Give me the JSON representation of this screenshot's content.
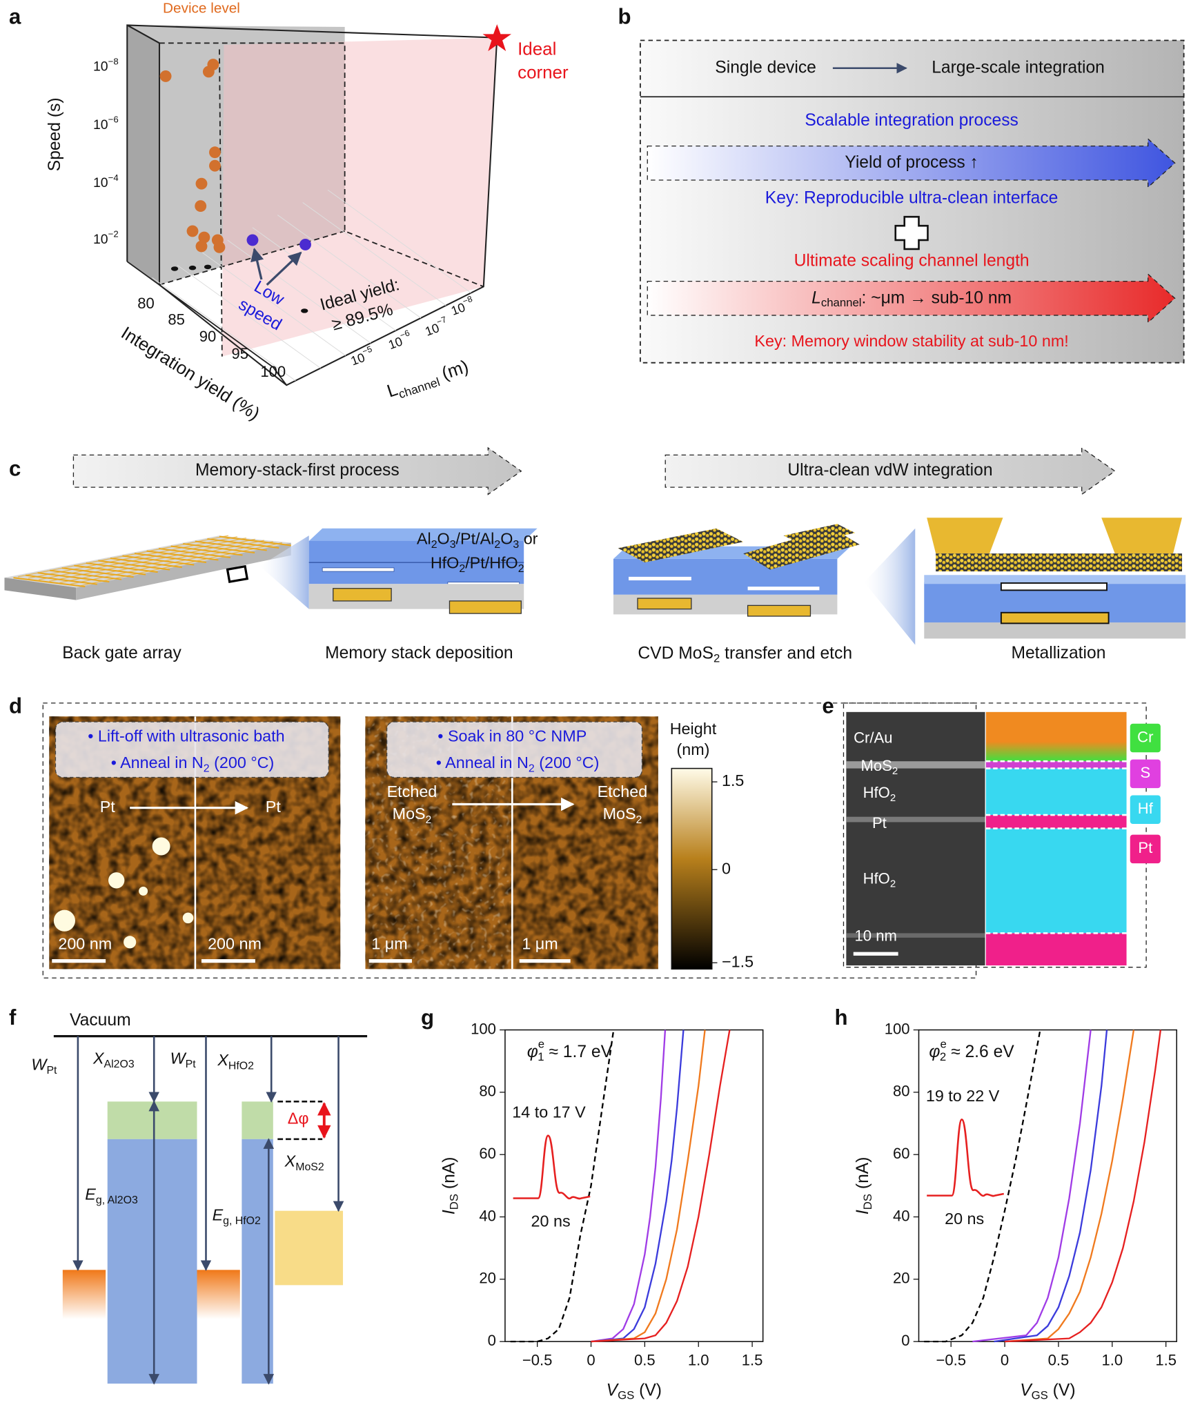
{
  "panel_labels": [
    "a",
    "b",
    "c",
    "d",
    "e",
    "f",
    "g",
    "h"
  ],
  "panel_a": {
    "device_level": "Device level",
    "ideal_corner": [
      "Ideal",
      "corner"
    ],
    "y_label": "Speed (s)",
    "y_ticks": [
      [
        "10",
        "−8"
      ],
      [
        "10",
        "−6"
      ],
      [
        "10",
        "−4"
      ],
      [
        "10",
        "−2"
      ]
    ],
    "yield_label": "Integration yield (%)",
    "yield_ticks": [
      "80",
      "85",
      "90",
      "95",
      "100"
    ],
    "l_ticks": [
      [
        "10",
        "−5"
      ],
      [
        "10",
        "−6"
      ],
      [
        "10",
        "−7"
      ],
      [
        "10",
        "−8"
      ]
    ],
    "l_label": [
      "L",
      "channel",
      " (m)"
    ],
    "low_speed": [
      "Low",
      "speed"
    ],
    "ideal_yield": [
      "Ideal yield:",
      "≥ 89.5%"
    ]
  },
  "panel_b": {
    "header_left": "Single device",
    "header_right": "Large-scale integration",
    "process": "Scalable integration process",
    "yield_arrow": "Yield of process ↑",
    "key1": "Key: Reproducible ultra-clean interface",
    "scaling": "Ultimate scaling channel length",
    "channel_arrow": [
      "L",
      "channel",
      ": ~μm → sub-10 nm"
    ],
    "key2": "Key: Memory window stability at sub-10 nm!"
  },
  "panel_c": {
    "arrow_left": "Memory-stack-first process",
    "arrow_right": "Ultra-clean vdW integration",
    "stack_line1": [
      "Al",
      "2",
      "O",
      "3",
      "/Pt/Al",
      "2",
      "O",
      "3",
      " or"
    ],
    "stack_line2": [
      "HfO",
      "2",
      "/Pt/HfO",
      "2"
    ],
    "captions": [
      "Back gate array",
      "Memory stack deposition",
      [
        "CVD MoS",
        "2",
        " transfer and etch"
      ],
      "Metallization"
    ]
  },
  "panel_d": {
    "left_notes": [
      "• Lift-off with ultrasonic bath",
      [
        "• Anneal in N",
        "2",
        " (200 °C)"
      ]
    ],
    "right_notes": [
      "• Soak in 80 °C NMP",
      [
        "• Anneal in N",
        "2",
        " (200 °C)"
      ]
    ],
    "left_labels": [
      "Pt",
      "Pt"
    ],
    "left_scales": [
      "200 nm",
      "200 nm"
    ],
    "right_labels": [
      [
        "Etched",
        "MoS",
        "2"
      ],
      [
        "Etched",
        "MoS",
        "2"
      ]
    ],
    "right_scales": [
      "1 μm",
      "1 μm"
    ],
    "colorbar_title": [
      "Height",
      "(nm)"
    ],
    "colorbar_ticks": [
      "1.5",
      "0",
      "−1.5"
    ]
  },
  "panel_e": {
    "layers": [
      "Cr/Au",
      [
        "MoS",
        "2"
      ],
      [
        "HfO",
        "2"
      ],
      "Pt",
      [
        "HfO",
        "2"
      ]
    ],
    "scale": "10 nm",
    "elements": [
      "Cr",
      "S",
      "Hf",
      "Pt"
    ]
  },
  "panel_f": {
    "vacuum": "Vacuum",
    "w_pt_left": [
      "W",
      "Pt"
    ],
    "x_al2o3": [
      "X",
      "Al",
      "2",
      "O",
      "3"
    ],
    "w_pt_mid": [
      "W",
      "Pt"
    ],
    "x_hfo2": [
      "X",
      "HfO",
      "2"
    ],
    "delta_phi": "Δφ",
    "x_mos2": [
      "X",
      "MoS",
      "2"
    ],
    "eg_al2o3": [
      "E",
      "g, Al",
      "2",
      "O",
      "3"
    ],
    "eg_hfo2": [
      "E",
      "g, HfO",
      "2"
    ]
  },
  "chart_data": [
    {
      "type": "line",
      "y_label": [
        "I",
        "DS",
        " (nA)"
      ],
      "x_label": [
        "V",
        "GS",
        " (V)"
      ],
      "energy_label": [
        "φ",
        "e",
        "1",
        " ≈ 1.7 eV"
      ],
      "annotations": [
        "14 to 17 V",
        "20 ns"
      ],
      "xlim": [
        -0.8,
        1.6
      ],
      "ylim": [
        0,
        100
      ],
      "xticks": [
        {
          "value": -0.5,
          "label": "−0.5"
        },
        0,
        0.5,
        {
          "value": 1,
          "label": "1.0"
        },
        1.5
      ],
      "yticks": [
        0,
        20,
        40,
        60,
        80,
        100
      ],
      "series": [
        {
          "color": "#000000",
          "style": "dashed",
          "x": [
            -0.75,
            -0.5,
            -0.4,
            -0.3,
            -0.2,
            -0.1,
            0,
            0.1,
            0.21
          ],
          "values": [
            0,
            0,
            1,
            4,
            14,
            34,
            50,
            74,
            100
          ]
        },
        {
          "color": "#a03ce6",
          "style": "solid",
          "x": [
            0,
            0.2,
            0.3,
            0.4,
            0.5,
            0.55,
            0.6,
            0.65,
            0.69
          ],
          "values": [
            0,
            1,
            4,
            12,
            28,
            40,
            56,
            78,
            100
          ]
        },
        {
          "color": "#3c3cdc",
          "style": "solid",
          "x": [
            0,
            0.3,
            0.4,
            0.5,
            0.6,
            0.7,
            0.75,
            0.8,
            0.86
          ],
          "values": [
            0,
            1,
            4,
            11,
            25,
            45,
            58,
            75,
            100
          ]
        },
        {
          "color": "#f07a1e",
          "style": "solid",
          "x": [
            0,
            0.4,
            0.5,
            0.6,
            0.7,
            0.8,
            0.9,
            1,
            1.06
          ],
          "values": [
            0,
            1,
            3,
            9,
            20,
            36,
            58,
            82,
            100
          ]
        },
        {
          "color": "#e62020",
          "style": "solid",
          "x": [
            0,
            0.5,
            0.6,
            0.7,
            0.8,
            0.9,
            1,
            1.1,
            1.2,
            1.29
          ],
          "values": [
            0,
            1,
            2,
            6,
            13,
            24,
            40,
            60,
            82,
            100
          ]
        }
      ]
    },
    {
      "type": "line",
      "y_label": [
        "I",
        "DS",
        " (nA)"
      ],
      "x_label": [
        "V",
        "GS",
        " (V)"
      ],
      "energy_label": [
        "φ",
        "e",
        "2",
        " ≈ 2.6 eV"
      ],
      "annotations": [
        "19 to 22 V",
        "20 ns"
      ],
      "xlim": [
        -0.8,
        1.6
      ],
      "ylim": [
        0,
        100
      ],
      "xticks": [
        {
          "value": -0.5,
          "label": "−0.5"
        },
        0,
        0.5,
        {
          "value": 1,
          "label": "1.0"
        },
        1.5
      ],
      "yticks": [
        0,
        20,
        40,
        60,
        80,
        100
      ],
      "series": [
        {
          "color": "#000000",
          "style": "dashed",
          "x": [
            -0.75,
            -0.55,
            -0.4,
            -0.3,
            -0.2,
            -0.1,
            0,
            0.1,
            0.2,
            0.33
          ],
          "values": [
            0,
            0,
            2,
            6,
            14,
            27,
            42,
            58,
            76,
            100
          ]
        },
        {
          "color": "#a03ce6",
          "style": "solid",
          "x": [
            -0.3,
            0.2,
            0.3,
            0.4,
            0.5,
            0.6,
            0.7,
            0.8
          ],
          "values": [
            0,
            2,
            6,
            14,
            27,
            46,
            70,
            100
          ]
        },
        {
          "color": "#3c3cdc",
          "style": "solid",
          "x": [
            -0.1,
            0.3,
            0.4,
            0.5,
            0.6,
            0.7,
            0.8,
            0.9,
            0.95
          ],
          "values": [
            0,
            2,
            5,
            11,
            21,
            35,
            55,
            82,
            100
          ]
        },
        {
          "color": "#f07a1e",
          "style": "solid",
          "x": [
            0,
            0.4,
            0.5,
            0.6,
            0.7,
            0.8,
            0.9,
            1,
            1.1,
            1.2
          ],
          "values": [
            0,
            1,
            4,
            9,
            16,
            27,
            41,
            58,
            78,
            100
          ]
        },
        {
          "color": "#e62020",
          "style": "solid",
          "x": [
            0,
            0.6,
            0.7,
            0.8,
            0.9,
            1,
            1.1,
            1.2,
            1.3,
            1.4,
            1.45
          ],
          "values": [
            0,
            1,
            3,
            6,
            11,
            19,
            30,
            45,
            64,
            87,
            100
          ]
        }
      ]
    }
  ]
}
